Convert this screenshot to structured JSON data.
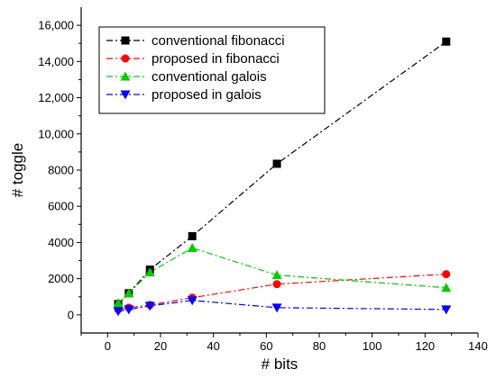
{
  "chart_data": {
    "type": "line",
    "title": "",
    "xlabel": "# bits",
    "ylabel": "# toggle",
    "xlim": [
      -10,
      140
    ],
    "ylim": [
      -1000,
      17000
    ],
    "x_ticks": [
      0,
      20,
      40,
      60,
      80,
      100,
      120,
      140
    ],
    "x_tick_labels": [
      "0",
      "20",
      "40",
      "60",
      "80",
      "100",
      "120",
      "140"
    ],
    "y_ticks": [
      0,
      2000,
      4000,
      6000,
      8000,
      10000,
      12000,
      14000,
      16000
    ],
    "y_tick_labels": [
      "0",
      "2000",
      "4000",
      "6000",
      "8000",
      "10,000",
      "12,000",
      "14,000",
      "16,000"
    ],
    "grid": false,
    "legend_position": "top-left",
    "series": [
      {
        "name": "conventional fibonacci",
        "color": "#000000",
        "marker": "square",
        "x": [
          4,
          8,
          16,
          32,
          64,
          128
        ],
        "y": [
          600,
          1200,
          2500,
          4350,
          8350,
          15100
        ]
      },
      {
        "name": "proposed in fibonacci",
        "color": "#ff0000",
        "marker": "circle",
        "x": [
          4,
          8,
          16,
          32,
          64,
          128
        ],
        "y": [
          300,
          400,
          550,
          950,
          1700,
          2250
        ]
      },
      {
        "name": "conventional galois",
        "color": "#00cc00",
        "marker": "triangle-up",
        "x": [
          4,
          8,
          16,
          32,
          64,
          128
        ],
        "y": [
          650,
          1200,
          2350,
          3700,
          2200,
          1500
        ]
      },
      {
        "name": "proposed in galois",
        "color": "#0000ff",
        "marker": "triangle-down",
        "x": [
          4,
          8,
          16,
          32,
          64,
          128
        ],
        "y": [
          200,
          300,
          500,
          800,
          400,
          300
        ]
      }
    ]
  }
}
